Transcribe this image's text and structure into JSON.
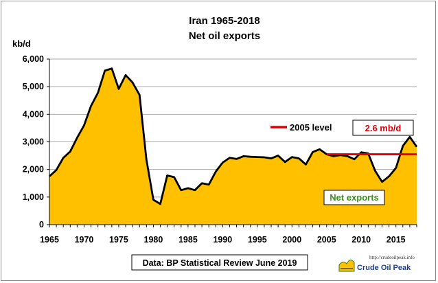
{
  "chart_data": {
    "type": "area",
    "title": "Iran 1965-2018",
    "subtitle": "Net oil exports",
    "ylabel": "kb/d",
    "xlabel": "",
    "xlim": [
      1965,
      2018
    ],
    "ylim": [
      0,
      6000
    ],
    "x_ticks": [
      1965,
      1970,
      1975,
      1980,
      1985,
      1990,
      1995,
      2000,
      2005,
      2010,
      2015
    ],
    "y_ticks": [
      0,
      1000,
      2000,
      3000,
      4000,
      5000,
      6000
    ],
    "y_tick_labels": [
      "0",
      "1,000",
      "2,000",
      "3,000",
      "4,000",
      "5,000",
      "6,000"
    ],
    "grid": "horizontal",
    "x": [
      1965,
      1966,
      1967,
      1968,
      1969,
      1970,
      1971,
      1972,
      1973,
      1974,
      1975,
      1976,
      1977,
      1978,
      1979,
      1980,
      1981,
      1982,
      1983,
      1984,
      1985,
      1986,
      1987,
      1988,
      1989,
      1990,
      1991,
      1992,
      1993,
      1994,
      1995,
      1996,
      1997,
      1998,
      1999,
      2000,
      2001,
      2002,
      2003,
      2004,
      2005,
      2006,
      2007,
      2008,
      2009,
      2010,
      2011,
      2012,
      2013,
      2014,
      2015,
      2016,
      2017,
      2018
    ],
    "series": [
      {
        "name": "Net exports",
        "values": [
          1750,
          1980,
          2420,
          2650,
          3150,
          3600,
          4300,
          4780,
          5580,
          5660,
          4920,
          5420,
          5150,
          4700,
          2350,
          900,
          750,
          1780,
          1720,
          1250,
          1320,
          1250,
          1500,
          1450,
          1920,
          2250,
          2420,
          2380,
          2480,
          2460,
          2450,
          2440,
          2400,
          2500,
          2270,
          2450,
          2400,
          2180,
          2630,
          2730,
          2550,
          2480,
          2520,
          2480,
          2370,
          2620,
          2580,
          1950,
          1550,
          1750,
          2050,
          2850,
          3180,
          2820
        ],
        "color": "#ffc000",
        "line_color": "#000000"
      }
    ],
    "reference_line": {
      "label": "2005 level",
      "value": 2550,
      "x_start": 2005,
      "x_end": 2018,
      "color": "#e0000a"
    },
    "annotations": {
      "level_box": "2.6 mb/d",
      "series_box": "Net exports",
      "source": "Data: BP Statistical Review June 2019"
    }
  },
  "logo": {
    "url": "http://crudeoilpeak.info",
    "text": "Crude Oil Peak"
  }
}
